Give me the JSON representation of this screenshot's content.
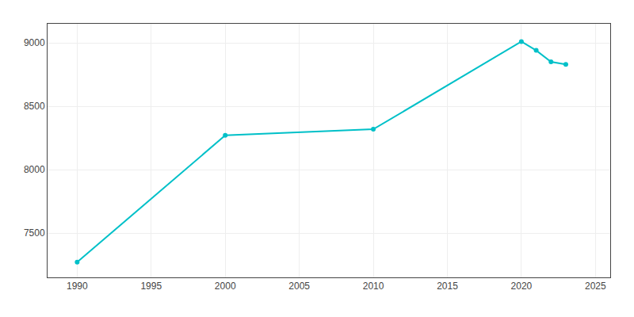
{
  "chart_data": {
    "type": "line",
    "x": [
      1990,
      2000,
      2010,
      2020,
      2021,
      2022,
      2023
    ],
    "values": [
      7270,
      8270,
      8318,
      9010,
      8940,
      8850,
      8830
    ],
    "color": "#00c0c8",
    "marker": "circle",
    "xlim": [
      1988,
      2026
    ],
    "ylim": [
      7150,
      9150
    ],
    "xticks": [
      1990,
      1995,
      2000,
      2005,
      2010,
      2015,
      2020,
      2025
    ],
    "yticks": [
      7500,
      8000,
      8500,
      9000
    ],
    "grid": true
  }
}
